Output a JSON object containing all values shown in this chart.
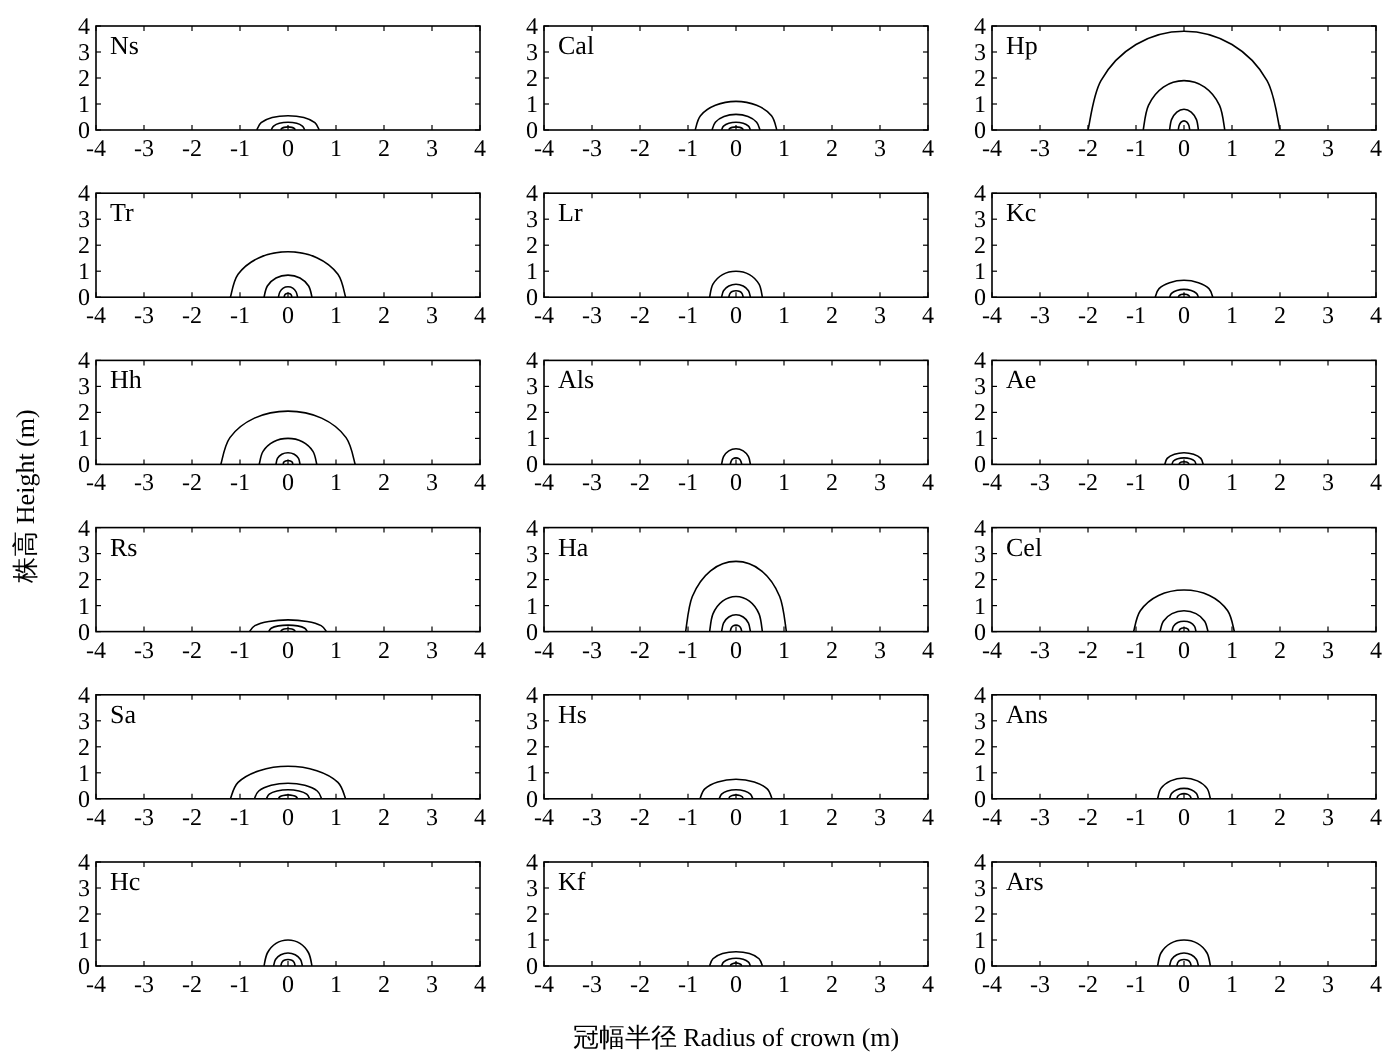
{
  "chart_data": [
    {
      "type": "line",
      "title": "Ns",
      "color": "#000000",
      "marker": "none",
      "xlim": [
        -4,
        4
      ],
      "ylim": [
        0,
        4
      ],
      "xticks": [
        -4,
        -3,
        -2,
        -1,
        0,
        1,
        2,
        3,
        4
      ],
      "yticks": [
        0,
        1,
        2,
        3,
        4
      ],
      "series": [
        {
          "x": [
            -0.65,
            -0.56,
            -0.33,
            0,
            0.33,
            0.56,
            0.65
          ],
          "values": [
            0,
            0.28,
            0.48,
            0.55,
            0.48,
            0.28,
            0
          ]
        },
        {
          "x": [
            -0.35,
            -0.3,
            -0.18,
            0,
            0.18,
            0.3,
            0.35
          ],
          "values": [
            0,
            0.15,
            0.26,
            0.3,
            0.26,
            0.15,
            0
          ]
        },
        {
          "x": [
            -0.15,
            -0.13,
            -0.08,
            0,
            0.08,
            0.13,
            0.15
          ],
          "values": [
            0,
            0.06,
            0.1,
            0.12,
            0.1,
            0.06,
            0
          ]
        }
      ]
    },
    {
      "type": "line",
      "title": "Cal",
      "color": "#000000",
      "marker": "none",
      "xlim": [
        -4,
        4
      ],
      "ylim": [
        0,
        4
      ],
      "xticks": [
        -4,
        -3,
        -2,
        -1,
        0,
        1,
        2,
        3,
        4
      ],
      "yticks": [
        0,
        1,
        2,
        3,
        4
      ],
      "series": [
        {
          "x": [
            -0.85,
            -0.74,
            -0.43,
            0,
            0.43,
            0.74,
            0.85
          ],
          "values": [
            0,
            0.55,
            0.95,
            1.1,
            0.95,
            0.55,
            0
          ]
        },
        {
          "x": [
            -0.5,
            -0.43,
            -0.25,
            0,
            0.25,
            0.43,
            0.5
          ],
          "values": [
            0,
            0.3,
            0.52,
            0.6,
            0.52,
            0.3,
            0
          ]
        },
        {
          "x": [
            -0.3,
            -0.26,
            -0.15,
            0,
            0.15,
            0.26,
            0.3
          ],
          "values": [
            0,
            0.15,
            0.26,
            0.3,
            0.26,
            0.15,
            0
          ]
        },
        {
          "x": [
            -0.15,
            -0.13,
            -0.08,
            0,
            0.08,
            0.13,
            0.15
          ],
          "values": [
            0,
            0.06,
            0.1,
            0.12,
            0.1,
            0.06,
            0
          ]
        }
      ]
    },
    {
      "type": "line",
      "title": "Hp",
      "color": "#000000",
      "marker": "none",
      "xlim": [
        -4,
        4
      ],
      "ylim": [
        0,
        4
      ],
      "xticks": [
        -4,
        -3,
        -2,
        -1,
        0,
        1,
        2,
        3,
        4
      ],
      "yticks": [
        0,
        1,
        2,
        3,
        4
      ],
      "series": [
        {
          "x": [
            -2,
            -1.73,
            -1,
            0,
            1,
            1.73,
            2
          ],
          "values": [
            0,
            1.9,
            3.29,
            3.8,
            3.29,
            1.9,
            0
          ]
        },
        {
          "x": [
            -0.85,
            -0.74,
            -0.43,
            0,
            0.43,
            0.74,
            0.85
          ],
          "values": [
            0,
            0.95,
            1.65,
            1.9,
            1.65,
            0.95,
            0
          ]
        },
        {
          "x": [
            -0.3,
            -0.26,
            -0.15,
            0,
            0.15,
            0.26,
            0.3
          ],
          "values": [
            0,
            0.4,
            0.69,
            0.8,
            0.69,
            0.4,
            0
          ]
        },
        {
          "x": [
            -0.12,
            -0.1,
            -0.06,
            0,
            0.06,
            0.1,
            0.12
          ],
          "values": [
            0,
            0.18,
            0.3,
            0.35,
            0.3,
            0.18,
            0
          ]
        }
      ]
    },
    {
      "type": "line",
      "title": "Tr",
      "color": "#000000",
      "marker": "none",
      "xlim": [
        -4,
        4
      ],
      "ylim": [
        0,
        4
      ],
      "xticks": [
        -4,
        -3,
        -2,
        -1,
        0,
        1,
        2,
        3,
        4
      ],
      "yticks": [
        0,
        1,
        2,
        3,
        4
      ],
      "series": [
        {
          "x": [
            -1.2,
            -1.04,
            -0.6,
            0,
            0.6,
            1.04,
            1.2
          ],
          "values": [
            0,
            0.88,
            1.52,
            1.75,
            1.52,
            0.88,
            0
          ]
        },
        {
          "x": [
            -0.5,
            -0.43,
            -0.25,
            0,
            0.25,
            0.43,
            0.5
          ],
          "values": [
            0,
            0.43,
            0.74,
            0.85,
            0.74,
            0.43,
            0
          ]
        },
        {
          "x": [
            -0.2,
            -0.17,
            -0.1,
            0,
            0.1,
            0.17,
            0.2
          ],
          "values": [
            0,
            0.2,
            0.35,
            0.4,
            0.35,
            0.2,
            0
          ]
        },
        {
          "x": [
            -0.08,
            -0.07,
            -0.04,
            0,
            0.04,
            0.07,
            0.08
          ],
          "values": [
            0,
            0.08,
            0.13,
            0.15,
            0.13,
            0.08,
            0
          ]
        }
      ]
    },
    {
      "type": "line",
      "title": "Lr",
      "color": "#000000",
      "marker": "none",
      "xlim": [
        -4,
        4
      ],
      "ylim": [
        0,
        4
      ],
      "xticks": [
        -4,
        -3,
        -2,
        -1,
        0,
        1,
        2,
        3,
        4
      ],
      "yticks": [
        0,
        1,
        2,
        3,
        4
      ],
      "series": [
        {
          "x": [
            -0.55,
            -0.48,
            -0.28,
            0,
            0.28,
            0.48,
            0.55
          ],
          "values": [
            0,
            0.5,
            0.87,
            1,
            0.87,
            0.5,
            0
          ]
        },
        {
          "x": [
            -0.3,
            -0.26,
            -0.15,
            0,
            0.15,
            0.26,
            0.3
          ],
          "values": [
            0,
            0.25,
            0.43,
            0.5,
            0.43,
            0.25,
            0
          ]
        },
        {
          "x": [
            -0.15,
            -0.13,
            -0.08,
            0,
            0.08,
            0.13,
            0.15
          ],
          "values": [
            0,
            0.13,
            0.22,
            0.25,
            0.22,
            0.13,
            0
          ]
        }
      ]
    },
    {
      "type": "line",
      "title": "Kc",
      "color": "#000000",
      "marker": "none",
      "xlim": [
        -4,
        4
      ],
      "ylim": [
        0,
        4
      ],
      "xticks": [
        -4,
        -3,
        -2,
        -1,
        0,
        1,
        2,
        3,
        4
      ],
      "yticks": [
        0,
        1,
        2,
        3,
        4
      ],
      "series": [
        {
          "x": [
            -0.6,
            -0.52,
            -0.3,
            0,
            0.3,
            0.52,
            0.6
          ],
          "values": [
            0,
            0.33,
            0.56,
            0.65,
            0.56,
            0.33,
            0
          ]
        },
        {
          "x": [
            -0.3,
            -0.26,
            -0.15,
            0,
            0.15,
            0.26,
            0.3
          ],
          "values": [
            0,
            0.15,
            0.26,
            0.3,
            0.26,
            0.15,
            0
          ]
        },
        {
          "x": [
            -0.12,
            -0.1,
            -0.06,
            0,
            0.06,
            0.1,
            0.12
          ],
          "values": [
            0,
            0.06,
            0.1,
            0.12,
            0.1,
            0.06,
            0
          ]
        }
      ]
    },
    {
      "type": "line",
      "title": "Hh",
      "color": "#000000",
      "marker": "none",
      "xlim": [
        -4,
        4
      ],
      "ylim": [
        0,
        4
      ],
      "xticks": [
        -4,
        -3,
        -2,
        -1,
        0,
        1,
        2,
        3,
        4
      ],
      "yticks": [
        0,
        1,
        2,
        3,
        4
      ],
      "series": [
        {
          "x": [
            -1.4,
            -1.21,
            -0.7,
            0,
            0.7,
            1.21,
            1.4
          ],
          "values": [
            0,
            1.03,
            1.78,
            2.05,
            1.78,
            1.03,
            0
          ]
        },
        {
          "x": [
            -0.6,
            -0.52,
            -0.3,
            0,
            0.3,
            0.52,
            0.6
          ],
          "values": [
            0,
            0.5,
            0.87,
            1,
            0.87,
            0.5,
            0
          ]
        },
        {
          "x": [
            -0.25,
            -0.22,
            -0.13,
            0,
            0.13,
            0.22,
            0.25
          ],
          "values": [
            0,
            0.23,
            0.39,
            0.45,
            0.39,
            0.23,
            0
          ]
        },
        {
          "x": [
            -0.1,
            -0.09,
            -0.05,
            0,
            0.05,
            0.09,
            0.1
          ],
          "values": [
            0,
            0.08,
            0.13,
            0.15,
            0.13,
            0.08,
            0
          ]
        }
      ]
    },
    {
      "type": "line",
      "title": "Als",
      "color": "#000000",
      "marker": "none",
      "xlim": [
        -4,
        4
      ],
      "ylim": [
        0,
        4
      ],
      "xticks": [
        -4,
        -3,
        -2,
        -1,
        0,
        1,
        2,
        3,
        4
      ],
      "yticks": [
        0,
        1,
        2,
        3,
        4
      ],
      "series": [
        {
          "x": [
            -0.3,
            -0.26,
            -0.15,
            0,
            0.15,
            0.26,
            0.3
          ],
          "values": [
            0,
            0.3,
            0.52,
            0.6,
            0.52,
            0.3,
            0
          ]
        },
        {
          "x": [
            -0.12,
            -0.1,
            -0.06,
            0,
            0.06,
            0.1,
            0.12
          ],
          "values": [
            0,
            0.13,
            0.22,
            0.25,
            0.22,
            0.13,
            0
          ]
        }
      ]
    },
    {
      "type": "line",
      "title": "Ae",
      "color": "#000000",
      "marker": "none",
      "xlim": [
        -4,
        4
      ],
      "ylim": [
        0,
        4
      ],
      "xticks": [
        -4,
        -3,
        -2,
        -1,
        0,
        1,
        2,
        3,
        4
      ],
      "yticks": [
        0,
        1,
        2,
        3,
        4
      ],
      "series": [
        {
          "x": [
            -0.4,
            -0.35,
            -0.2,
            0,
            0.2,
            0.35,
            0.4
          ],
          "values": [
            0,
            0.23,
            0.39,
            0.45,
            0.39,
            0.23,
            0
          ]
        },
        {
          "x": [
            -0.25,
            -0.22,
            -0.13,
            0,
            0.13,
            0.22,
            0.25
          ],
          "values": [
            0,
            0.13,
            0.22,
            0.25,
            0.22,
            0.13,
            0
          ]
        },
        {
          "x": [
            -0.1,
            -0.09,
            -0.05,
            0,
            0.05,
            0.09,
            0.1
          ],
          "values": [
            0,
            0.05,
            0.09,
            0.1,
            0.09,
            0.05,
            0
          ]
        }
      ]
    },
    {
      "type": "line",
      "title": "Rs",
      "ylabel": "株高 Height (m)",
      "color": "#000000",
      "marker": "none",
      "xlim": [
        -4,
        4
      ],
      "ylim": [
        0,
        4
      ],
      "xticks": [
        -4,
        -3,
        -2,
        -1,
        0,
        1,
        2,
        3,
        4
      ],
      "yticks": [
        0,
        1,
        2,
        3,
        4
      ],
      "series": [
        {
          "x": [
            -0.8,
            -0.69,
            -0.4,
            0,
            0.4,
            0.69,
            0.8
          ],
          "values": [
            0,
            0.23,
            0.39,
            0.45,
            0.39,
            0.23,
            0
          ]
        },
        {
          "x": [
            -0.4,
            -0.35,
            -0.2,
            0,
            0.2,
            0.35,
            0.4
          ],
          "values": [
            0,
            0.13,
            0.22,
            0.25,
            0.22,
            0.13,
            0
          ]
        },
        {
          "x": [
            -0.15,
            -0.13,
            -0.08,
            0,
            0.08,
            0.13,
            0.15
          ],
          "values": [
            0,
            0.06,
            0.1,
            0.12,
            0.1,
            0.06,
            0
          ]
        }
      ]
    },
    {
      "type": "line",
      "title": "Ha",
      "color": "#000000",
      "marker": "none",
      "xlim": [
        -4,
        4
      ],
      "ylim": [
        0,
        4
      ],
      "xticks": [
        -4,
        -3,
        -2,
        -1,
        0,
        1,
        2,
        3,
        4
      ],
      "yticks": [
        0,
        1,
        2,
        3,
        4
      ],
      "series": [
        {
          "x": [
            -1.05,
            -0.91,
            -0.53,
            0,
            0.53,
            0.91,
            1.05
          ],
          "values": [
            0,
            1.35,
            2.34,
            2.7,
            2.34,
            1.35,
            0
          ]
        },
        {
          "x": [
            -0.55,
            -0.48,
            -0.28,
            0,
            0.28,
            0.48,
            0.55
          ],
          "values": [
            0,
            0.68,
            1.17,
            1.35,
            1.17,
            0.68,
            0
          ]
        },
        {
          "x": [
            -0.3,
            -0.26,
            -0.15,
            0,
            0.15,
            0.26,
            0.3
          ],
          "values": [
            0,
            0.33,
            0.56,
            0.65,
            0.56,
            0.33,
            0
          ]
        },
        {
          "x": [
            -0.12,
            -0.1,
            -0.06,
            0,
            0.06,
            0.1,
            0.12
          ],
          "values": [
            0,
            0.13,
            0.22,
            0.25,
            0.22,
            0.13,
            0
          ]
        }
      ]
    },
    {
      "type": "line",
      "title": "Cel",
      "color": "#000000",
      "marker": "none",
      "xlim": [
        -4,
        4
      ],
      "ylim": [
        0,
        4
      ],
      "xticks": [
        -4,
        -3,
        -2,
        -1,
        0,
        1,
        2,
        3,
        4
      ],
      "yticks": [
        0,
        1,
        2,
        3,
        4
      ],
      "series": [
        {
          "x": [
            -1.05,
            -0.91,
            -0.53,
            0,
            0.53,
            0.91,
            1.05
          ],
          "values": [
            0,
            0.8,
            1.39,
            1.6,
            1.39,
            0.8,
            0
          ]
        },
        {
          "x": [
            -0.5,
            -0.43,
            -0.25,
            0,
            0.25,
            0.43,
            0.5
          ],
          "values": [
            0,
            0.4,
            0.69,
            0.8,
            0.69,
            0.4,
            0
          ]
        },
        {
          "x": [
            -0.25,
            -0.22,
            -0.13,
            0,
            0.13,
            0.22,
            0.25
          ],
          "values": [
            0,
            0.2,
            0.35,
            0.4,
            0.35,
            0.2,
            0
          ]
        },
        {
          "x": [
            -0.1,
            -0.09,
            -0.05,
            0,
            0.05,
            0.09,
            0.1
          ],
          "values": [
            0,
            0.08,
            0.13,
            0.15,
            0.13,
            0.08,
            0
          ]
        }
      ]
    },
    {
      "type": "line",
      "title": "Sa",
      "color": "#000000",
      "marker": "none",
      "xlim": [
        -4,
        4
      ],
      "ylim": [
        0,
        4
      ],
      "xticks": [
        -4,
        -3,
        -2,
        -1,
        0,
        1,
        2,
        3,
        4
      ],
      "yticks": [
        0,
        1,
        2,
        3,
        4
      ],
      "series": [
        {
          "x": [
            -1.2,
            -1.04,
            -0.6,
            0,
            0.6,
            1.04,
            1.2
          ],
          "values": [
            0,
            0.63,
            1.08,
            1.25,
            1.08,
            0.63,
            0
          ]
        },
        {
          "x": [
            -0.7,
            -0.61,
            -0.35,
            0,
            0.35,
            0.61,
            0.7
          ],
          "values": [
            0,
            0.3,
            0.52,
            0.6,
            0.52,
            0.3,
            0
          ]
        },
        {
          "x": [
            -0.45,
            -0.39,
            -0.23,
            0,
            0.23,
            0.39,
            0.45
          ],
          "values": [
            0,
            0.18,
            0.3,
            0.35,
            0.3,
            0.18,
            0
          ]
        },
        {
          "x": [
            -0.2,
            -0.17,
            -0.1,
            0,
            0.1,
            0.17,
            0.2
          ],
          "values": [
            0,
            0.08,
            0.13,
            0.15,
            0.13,
            0.08,
            0
          ]
        }
      ]
    },
    {
      "type": "line",
      "title": "Hs",
      "color": "#000000",
      "marker": "none",
      "xlim": [
        -4,
        4
      ],
      "ylim": [
        0,
        4
      ],
      "xticks": [
        -4,
        -3,
        -2,
        -1,
        0,
        1,
        2,
        3,
        4
      ],
      "yticks": [
        0,
        1,
        2,
        3,
        4
      ],
      "series": [
        {
          "x": [
            -0.75,
            -0.65,
            -0.38,
            0,
            0.38,
            0.65,
            0.75
          ],
          "values": [
            0,
            0.38,
            0.65,
            0.75,
            0.65,
            0.38,
            0
          ]
        },
        {
          "x": [
            -0.35,
            -0.3,
            -0.18,
            0,
            0.18,
            0.3,
            0.35
          ],
          "values": [
            0,
            0.18,
            0.3,
            0.35,
            0.3,
            0.18,
            0
          ]
        },
        {
          "x": [
            -0.15,
            -0.13,
            -0.08,
            0,
            0.08,
            0.13,
            0.15
          ],
          "values": [
            0,
            0.08,
            0.13,
            0.15,
            0.13,
            0.08,
            0
          ]
        }
      ]
    },
    {
      "type": "line",
      "title": "Ans",
      "color": "#000000",
      "marker": "none",
      "xlim": [
        -4,
        4
      ],
      "ylim": [
        0,
        4
      ],
      "xticks": [
        -4,
        -3,
        -2,
        -1,
        0,
        1,
        2,
        3,
        4
      ],
      "yticks": [
        0,
        1,
        2,
        3,
        4
      ],
      "series": [
        {
          "x": [
            -0.55,
            -0.48,
            -0.28,
            0,
            0.28,
            0.48,
            0.55
          ],
          "values": [
            0,
            0.4,
            0.69,
            0.8,
            0.69,
            0.4,
            0
          ]
        },
        {
          "x": [
            -0.3,
            -0.26,
            -0.15,
            0,
            0.15,
            0.26,
            0.3
          ],
          "values": [
            0,
            0.2,
            0.35,
            0.4,
            0.35,
            0.2,
            0
          ]
        },
        {
          "x": [
            -0.15,
            -0.13,
            -0.08,
            0,
            0.08,
            0.13,
            0.15
          ],
          "values": [
            0,
            0.1,
            0.17,
            0.2,
            0.17,
            0.1,
            0
          ]
        }
      ]
    },
    {
      "type": "line",
      "title": "Hc",
      "color": "#000000",
      "marker": "none",
      "xlim": [
        -4,
        4
      ],
      "ylim": [
        0,
        4
      ],
      "xticks": [
        -4,
        -3,
        -2,
        -1,
        0,
        1,
        2,
        3,
        4
      ],
      "yticks": [
        0,
        1,
        2,
        3,
        4
      ],
      "series": [
        {
          "x": [
            -0.5,
            -0.43,
            -0.25,
            0,
            0.25,
            0.43,
            0.5
          ],
          "values": [
            0,
            0.5,
            0.87,
            1,
            0.87,
            0.5,
            0
          ]
        },
        {
          "x": [
            -0.3,
            -0.26,
            -0.15,
            0,
            0.15,
            0.26,
            0.3
          ],
          "values": [
            0,
            0.25,
            0.43,
            0.5,
            0.43,
            0.25,
            0
          ]
        },
        {
          "x": [
            -0.15,
            -0.13,
            -0.08,
            0,
            0.08,
            0.13,
            0.15
          ],
          "values": [
            0,
            0.13,
            0.22,
            0.25,
            0.22,
            0.13,
            0
          ]
        }
      ]
    },
    {
      "type": "line",
      "title": "Kf",
      "xlabel": "冠幅半径 Radius of crown (m)",
      "color": "#000000",
      "marker": "none",
      "xlim": [
        -4,
        4
      ],
      "ylim": [
        0,
        4
      ],
      "xticks": [
        -4,
        -3,
        -2,
        -1,
        0,
        1,
        2,
        3,
        4
      ],
      "yticks": [
        0,
        1,
        2,
        3,
        4
      ],
      "series": [
        {
          "x": [
            -0.55,
            -0.48,
            -0.28,
            0,
            0.28,
            0.48,
            0.55
          ],
          "values": [
            0,
            0.28,
            0.48,
            0.55,
            0.48,
            0.28,
            0
          ]
        },
        {
          "x": [
            -0.3,
            -0.26,
            -0.15,
            0,
            0.15,
            0.26,
            0.3
          ],
          "values": [
            0,
            0.15,
            0.26,
            0.3,
            0.26,
            0.15,
            0
          ]
        },
        {
          "x": [
            -0.12,
            -0.1,
            -0.06,
            0,
            0.06,
            0.1,
            0.12
          ],
          "values": [
            0,
            0.06,
            0.1,
            0.12,
            0.1,
            0.06,
            0
          ]
        }
      ]
    },
    {
      "type": "line",
      "title": "Ars",
      "color": "#000000",
      "marker": "none",
      "xlim": [
        -4,
        4
      ],
      "ylim": [
        0,
        4
      ],
      "xticks": [
        -4,
        -3,
        -2,
        -1,
        0,
        1,
        2,
        3,
        4
      ],
      "yticks": [
        0,
        1,
        2,
        3,
        4
      ],
      "series": [
        {
          "x": [
            -0.55,
            -0.48,
            -0.28,
            0,
            0.28,
            0.48,
            0.55
          ],
          "values": [
            0,
            0.5,
            0.87,
            1,
            0.87,
            0.5,
            0
          ]
        },
        {
          "x": [
            -0.3,
            -0.26,
            -0.15,
            0,
            0.15,
            0.26,
            0.3
          ],
          "values": [
            0,
            0.25,
            0.43,
            0.5,
            0.43,
            0.25,
            0
          ]
        },
        {
          "x": [
            -0.15,
            -0.13,
            -0.08,
            0,
            0.08,
            0.13,
            0.15
          ],
          "values": [
            0,
            0.13,
            0.22,
            0.25,
            0.22,
            0.13,
            0
          ]
        }
      ]
    }
  ]
}
